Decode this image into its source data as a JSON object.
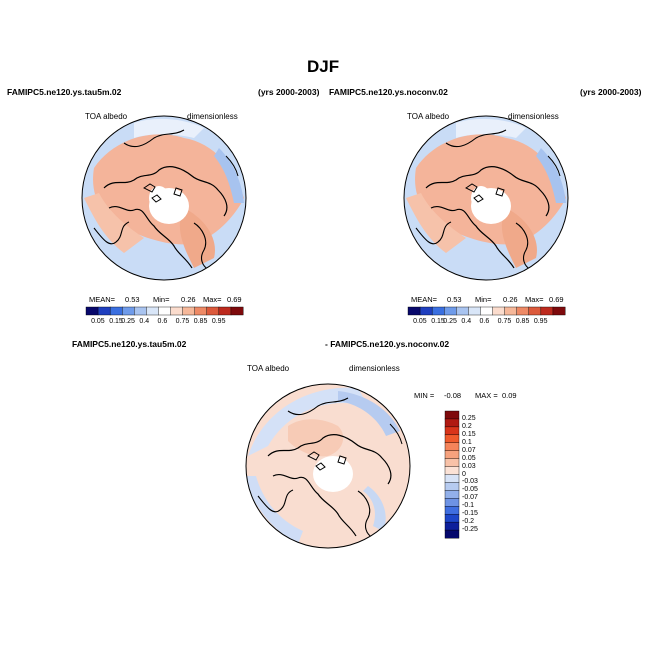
{
  "title": "DJF",
  "panels": [
    {
      "case": "FAMIPC5.ne120.ys.tau5m.02",
      "years": "(yrs 2000-2003)",
      "variable": "TOA albedo",
      "units": "dimensionless",
      "stats": {
        "mean_label": "MEAN=",
        "mean": "0.53",
        "min_label": "Min=",
        "min": "0.26",
        "max_label": "Max=",
        "max": "0.69"
      }
    },
    {
      "case": "FAMIPC5.ne120.ys.noconv.02",
      "years": "(yrs 2000-2003)",
      "variable": "TOA albedo",
      "units": "dimensionless",
      "stats": {
        "mean_label": "MEAN=",
        "mean": "0.53",
        "min_label": "Min=",
        "min": "0.26",
        "max_label": "Max=",
        "max": "0.69"
      }
    }
  ],
  "diff": {
    "left_label": "FAMIPC5.ne120.ys.tau5m.02",
    "right_label": "- FAMIPC5.ne120.ys.noconv.02",
    "variable": "TOA albedo",
    "units": "dimensionless",
    "min_label": "MIN =",
    "min": "-0.08",
    "max_label": "MAX =",
    "max": "0.09"
  },
  "colorbar_abs": {
    "labels": [
      "0.05",
      "0.15",
      "0.25",
      "0.4",
      "0.6",
      "0.75",
      "0.85",
      "0.95"
    ],
    "colors": [
      "#08086b",
      "#1f3fbf",
      "#3a6fe0",
      "#6f9bea",
      "#a9c4f0",
      "#d9e6f8",
      "#ffffff",
      "#fbdccd",
      "#f6b89a",
      "#ee8a66",
      "#dc5a3c",
      "#bd2a1e",
      "#7e0a0c"
    ]
  },
  "colorbar_diff": {
    "labels": [
      "0.25",
      "0.2",
      "0.15",
      "0.1",
      "0.07",
      "0.05",
      "0.03",
      "0",
      "-0.03",
      "-0.05",
      "-0.07",
      "-0.1",
      "-0.15",
      "-0.2",
      "-0.25"
    ],
    "colors": [
      "#7e0a0c",
      "#b01a12",
      "#d8341a",
      "#ef5a2c",
      "#f5845a",
      "#f6a27e",
      "#f8c2a8",
      "#fbe2d6",
      "#d7e3f7",
      "#b6cbf0",
      "#92b0ea",
      "#6e93e4",
      "#3f6ee0",
      "#1d46c9",
      "#0d1f9b",
      "#05086c"
    ]
  }
}
